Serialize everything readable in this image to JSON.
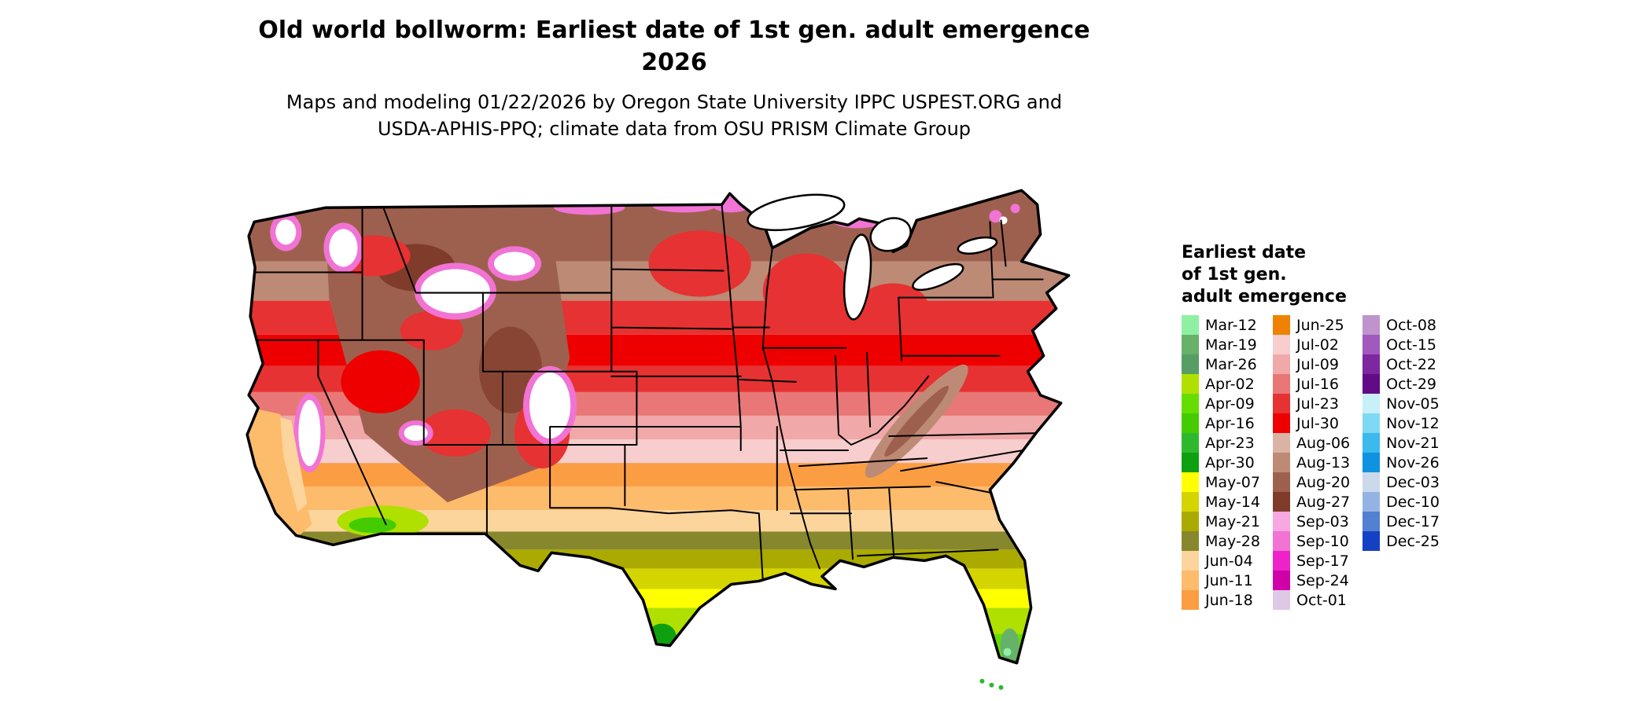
{
  "header": {
    "title": "Old world bollworm: Earliest date of 1st gen. adult emergence",
    "title_year": "2026",
    "subtitle_line1": "Maps and modeling 01/22/2026 by Oregon State University IPPC USPEST.ORG and",
    "subtitle_line2": "USDA-APHIS-PPQ; climate data from OSU PRISM Climate Group"
  },
  "legend": {
    "title_lines": [
      "Earliest date",
      "of 1st gen.",
      "adult emergence"
    ],
    "columns": [
      {
        "entries": [
          {
            "label": "Mar-12",
            "color": "#8ff0a4"
          },
          {
            "label": "Mar-19",
            "color": "#67b168"
          },
          {
            "label": "Mar-26",
            "color": "#569e63"
          },
          {
            "label": "Apr-02",
            "color": "#b0e000"
          },
          {
            "label": "Apr-09",
            "color": "#66dd00"
          },
          {
            "label": "Apr-16",
            "color": "#44cc00"
          },
          {
            "label": "Apr-23",
            "color": "#2eb82e"
          },
          {
            "label": "Apr-30",
            "color": "#0fa00f"
          },
          {
            "label": "May-07",
            "color": "#ffff00"
          },
          {
            "label": "May-14",
            "color": "#d4d400"
          },
          {
            "label": "May-21",
            "color": "#aaaa00"
          },
          {
            "label": "May-28",
            "color": "#87872d"
          },
          {
            "label": "Jun-04",
            "color": "#fcd59c"
          },
          {
            "label": "Jun-11",
            "color": "#fdbb6c"
          },
          {
            "label": "Jun-18",
            "color": "#fb9e43"
          }
        ]
      },
      {
        "entries": [
          {
            "label": "Jun-25",
            "color": "#ef8200"
          },
          {
            "label": "Jul-02",
            "color": "#f7cdcd"
          },
          {
            "label": "Jul-09",
            "color": "#f0a8a8"
          },
          {
            "label": "Jul-16",
            "color": "#e97777"
          },
          {
            "label": "Jul-23",
            "color": "#e63232"
          },
          {
            "label": "Jul-30",
            "color": "#ee0000"
          },
          {
            "label": "Aug-06",
            "color": "#dbb3a5"
          },
          {
            "label": "Aug-13",
            "color": "#bd8a75"
          },
          {
            "label": "Aug-20",
            "color": "#9e604e"
          },
          {
            "label": "Aug-27",
            "color": "#803c2b"
          },
          {
            "label": "Sep-03",
            "color": "#f7a8e0"
          },
          {
            "label": "Sep-10",
            "color": "#f173d4"
          },
          {
            "label": "Sep-17",
            "color": "#ed22c8"
          },
          {
            "label": "Sep-24",
            "color": "#cf00a8"
          },
          {
            "label": "Oct-01",
            "color": "#dfc8e6"
          }
        ]
      },
      {
        "entries": [
          {
            "label": "Oct-08",
            "color": "#bf94cc"
          },
          {
            "label": "Oct-15",
            "color": "#a159bd"
          },
          {
            "label": "Oct-22",
            "color": "#7d28a0"
          },
          {
            "label": "Oct-29",
            "color": "#620b86"
          },
          {
            "label": "Nov-05",
            "color": "#c8f0f8"
          },
          {
            "label": "Nov-12",
            "color": "#7fd9f4"
          },
          {
            "label": "Nov-21",
            "color": "#3cb9ed"
          },
          {
            "label": "Nov-26",
            "color": "#0f93e0"
          },
          {
            "label": "Dec-03",
            "color": "#ccd9ea"
          },
          {
            "label": "Dec-10",
            "color": "#94b3e2"
          },
          {
            "label": "Dec-17",
            "color": "#5280d2"
          },
          {
            "label": "Dec-25",
            "color": "#1441c4"
          }
        ]
      }
    ]
  },
  "map": {
    "background": "#ffffff",
    "border_color": "#000000",
    "band_colors_south_to_north": [
      "#2eb82e",
      "#66dd00",
      "#b0e000",
      "#ffff00",
      "#d4d400",
      "#aaaa00",
      "#87872d",
      "#fcd59c",
      "#fdbb6c",
      "#fb9e43",
      "#f7cdcd",
      "#f0a8a8",
      "#e97777",
      "#e63232",
      "#ee0000",
      "#e63232",
      "#bd8a75",
      "#9e604e"
    ],
    "features": {
      "west_highland": "#9e604e",
      "west_highland_dark": "#803c2b",
      "west_red": "#e63232",
      "west_bright_red": "#ee0000",
      "snow": "#ffffff",
      "snow_fringe": "#f173d4",
      "ca_coast": "#fdbb6c",
      "ca_valley": "#fcd59c",
      "az_desert": "#b0e000",
      "az_desert_core": "#44cc00",
      "appalachia": "#bd8a75",
      "appalachia_dark": "#9e604e",
      "northeast_highland": "#9e604e",
      "north_fringe": "#f173d4",
      "midwest_red": "#e63232",
      "fl_tip_green": "#67b168",
      "fl_tip_mint": "#8ff0a4",
      "fl_keys_green": "#2eb82e",
      "tx_tip_green": "#0fa00f",
      "lakes": "#ffffff"
    }
  }
}
